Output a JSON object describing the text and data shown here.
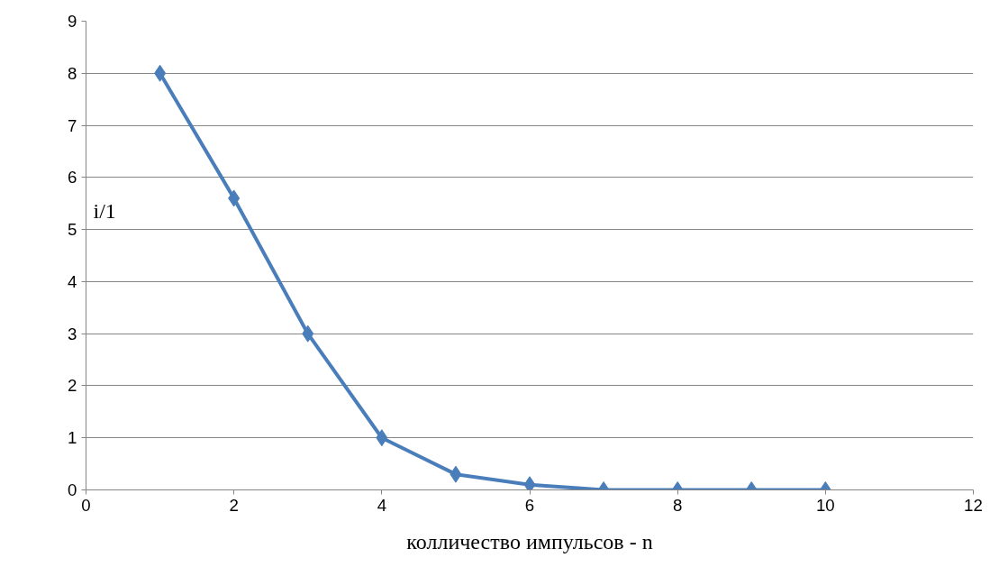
{
  "chart_data": {
    "type": "line",
    "xlabel": "колличество импульсов - n",
    "ylabel": "i/1",
    "x": [
      1,
      2,
      3,
      4,
      5,
      6,
      7,
      8,
      9,
      10
    ],
    "series": [
      {
        "color": "#4a7ebb",
        "values": [
          8,
          5.6,
          3,
          1,
          0.3,
          0.1,
          0,
          0,
          0,
          0
        ]
      }
    ],
    "xlim": [
      0,
      12
    ],
    "xticks": [
      0,
      2,
      4,
      6,
      8,
      10,
      12
    ],
    "ylim": [
      0,
      9
    ],
    "yticks": [
      0,
      1,
      2,
      3,
      4,
      5,
      6,
      7,
      8,
      9
    ],
    "grid": "y",
    "marker": "diamond",
    "line_style": "solid"
  }
}
